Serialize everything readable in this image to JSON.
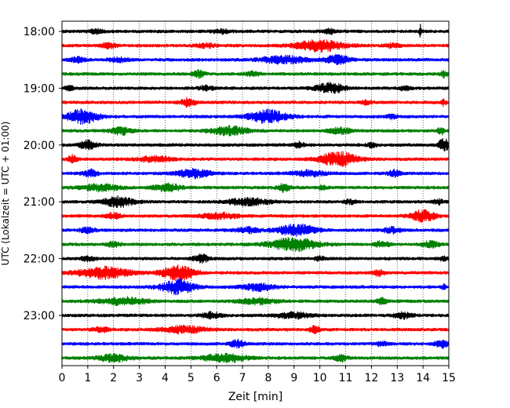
{
  "chart_data": {
    "type": "line",
    "title": "",
    "xlabel": "Zeit  [min]",
    "ylabel": "UTC (Lokalzeit = UTC + 01:00)",
    "xlim": [
      0,
      15
    ],
    "x_ticks": [
      0,
      1,
      2,
      3,
      4,
      5,
      6,
      7,
      8,
      9,
      10,
      11,
      12,
      13,
      14,
      15
    ],
    "y_tick_labels": [
      "18:00",
      "19:00",
      "20:00",
      "21:00",
      "22:00",
      "23:00"
    ],
    "y_tick_trace_index": [
      0,
      4,
      8,
      12,
      16,
      20
    ],
    "grid": "vertical dotted at each minute",
    "trace_interval_minutes": 15,
    "color_cycle": [
      "#000000",
      "#ff0000",
      "#0000ff",
      "#008000"
    ],
    "traces": [
      {
        "start": "18:00",
        "color": "#000000",
        "bursts": [
          [
            1.3,
            0.6,
            0.3
          ],
          [
            6.2,
            0.7,
            0.3
          ],
          [
            10.4,
            0.5,
            0.3
          ],
          [
            13.9,
            0.1,
            1.0
          ]
        ]
      },
      {
        "start": "18:15",
        "color": "#ff0000",
        "bursts": [
          [
            1.8,
            0.6,
            0.4
          ],
          [
            5.6,
            0.8,
            0.3
          ],
          [
            10.0,
            2.0,
            0.8
          ],
          [
            12.8,
            0.6,
            0.3
          ]
        ]
      },
      {
        "start": "18:30",
        "color": "#0000ff",
        "bursts": [
          [
            0.6,
            0.6,
            0.4
          ],
          [
            2.2,
            0.8,
            0.3
          ],
          [
            8.6,
            2.0,
            0.5
          ],
          [
            10.7,
            1.0,
            0.6
          ]
        ]
      },
      {
        "start": "18:45",
        "color": "#008000",
        "bursts": [
          [
            5.3,
            0.5,
            0.5
          ],
          [
            7.4,
            0.6,
            0.3
          ],
          [
            14.8,
            0.3,
            0.4
          ]
        ]
      },
      {
        "start": "19:00",
        "color": "#000000",
        "bursts": [
          [
            0.3,
            0.4,
            0.3
          ],
          [
            5.6,
            0.6,
            0.3
          ],
          [
            10.4,
            1.2,
            0.7
          ],
          [
            13.3,
            0.5,
            0.3
          ]
        ]
      },
      {
        "start": "19:15",
        "color": "#ff0000",
        "bursts": [
          [
            4.9,
            0.6,
            0.6
          ],
          [
            11.8,
            0.4,
            0.3
          ],
          [
            14.8,
            0.2,
            0.4
          ]
        ]
      },
      {
        "start": "19:30",
        "color": "#0000ff",
        "bursts": [
          [
            0.8,
            1.3,
            1.0
          ],
          [
            8.0,
            1.6,
            0.9
          ],
          [
            12.8,
            0.4,
            0.3
          ]
        ]
      },
      {
        "start": "19:45",
        "color": "#008000",
        "bursts": [
          [
            2.3,
            0.9,
            0.5
          ],
          [
            6.5,
            1.6,
            0.6
          ],
          [
            10.8,
            1.0,
            0.4
          ],
          [
            14.7,
            0.3,
            0.5
          ]
        ]
      },
      {
        "start": "20:00",
        "color": "#000000",
        "bursts": [
          [
            1.0,
            0.7,
            0.6
          ],
          [
            9.2,
            0.4,
            0.4
          ],
          [
            12.0,
            0.4,
            0.3
          ],
          [
            14.8,
            0.4,
            1.0
          ]
        ]
      },
      {
        "start": "20:15",
        "color": "#ff0000",
        "bursts": [
          [
            0.4,
            0.4,
            0.5
          ],
          [
            3.6,
            1.4,
            0.4
          ],
          [
            10.7,
            1.6,
            1.0
          ]
        ]
      },
      {
        "start": "20:30",
        "color": "#0000ff",
        "bursts": [
          [
            1.1,
            0.6,
            0.5
          ],
          [
            5.1,
            1.4,
            0.6
          ],
          [
            9.6,
            1.4,
            0.4
          ],
          [
            12.9,
            0.5,
            0.5
          ]
        ]
      },
      {
        "start": "20:45",
        "color": "#008000",
        "bursts": [
          [
            1.5,
            1.6,
            0.5
          ],
          [
            4.1,
            1.2,
            0.5
          ],
          [
            8.6,
            0.6,
            0.5
          ],
          [
            10.1,
            0.3,
            0.3
          ]
        ]
      },
      {
        "start": "21:00",
        "color": "#000000",
        "bursts": [
          [
            2.2,
            1.3,
            0.7
          ],
          [
            7.2,
            1.8,
            0.5
          ],
          [
            11.2,
            0.5,
            0.3
          ],
          [
            14.6,
            0.5,
            0.3
          ]
        ]
      },
      {
        "start": "21:15",
        "color": "#ff0000",
        "bursts": [
          [
            2.0,
            0.6,
            0.4
          ],
          [
            6.1,
            1.6,
            0.4
          ],
          [
            14.0,
            1.0,
            0.8
          ]
        ]
      },
      {
        "start": "21:30",
        "color": "#0000ff",
        "bursts": [
          [
            1.0,
            0.6,
            0.4
          ],
          [
            7.2,
            0.9,
            0.4
          ],
          [
            9.1,
            1.6,
            0.8
          ],
          [
            12.8,
            0.7,
            0.4
          ]
        ]
      },
      {
        "start": "21:45",
        "color": "#008000",
        "bursts": [
          [
            2.0,
            0.5,
            0.4
          ],
          [
            9.0,
            2.0,
            0.9
          ],
          [
            12.4,
            0.6,
            0.4
          ],
          [
            14.3,
            0.7,
            0.4
          ]
        ]
      },
      {
        "start": "22:00",
        "color": "#000000",
        "bursts": [
          [
            1.0,
            0.6,
            0.3
          ],
          [
            5.4,
            0.6,
            0.6
          ],
          [
            10.0,
            0.4,
            0.3
          ],
          [
            14.8,
            0.3,
            0.3
          ]
        ]
      },
      {
        "start": "22:15",
        "color": "#ff0000",
        "bursts": [
          [
            1.6,
            2.2,
            0.8
          ],
          [
            4.5,
            1.4,
            1.0
          ],
          [
            12.3,
            0.5,
            0.4
          ]
        ]
      },
      {
        "start": "22:30",
        "color": "#0000ff",
        "bursts": [
          [
            4.5,
            1.4,
            1.0
          ],
          [
            7.6,
            1.3,
            0.5
          ],
          [
            14.8,
            0.2,
            0.3
          ]
        ]
      },
      {
        "start": "22:45",
        "color": "#008000",
        "bursts": [
          [
            2.4,
            2.0,
            0.5
          ],
          [
            7.6,
            1.6,
            0.4
          ],
          [
            12.4,
            0.4,
            0.5
          ]
        ]
      },
      {
        "start": "23:00",
        "color": "#000000",
        "bursts": [
          [
            5.8,
            0.8,
            0.4
          ],
          [
            9.0,
            1.4,
            0.4
          ],
          [
            13.2,
            0.8,
            0.4
          ]
        ]
      },
      {
        "start": "23:15",
        "color": "#ff0000",
        "bursts": [
          [
            1.5,
            0.6,
            0.4
          ],
          [
            4.7,
            1.8,
            0.5
          ],
          [
            9.8,
            0.4,
            0.5
          ]
        ]
      },
      {
        "start": "23:30",
        "color": "#0000ff",
        "bursts": [
          [
            6.8,
            0.6,
            0.5
          ],
          [
            12.4,
            0.5,
            0.3
          ],
          [
            14.7,
            0.5,
            0.6
          ]
        ]
      },
      {
        "start": "23:45",
        "color": "#008000",
        "bursts": [
          [
            2.0,
            1.3,
            0.5
          ],
          [
            6.3,
            1.8,
            0.6
          ],
          [
            10.8,
            0.5,
            0.5
          ]
        ]
      }
    ]
  }
}
